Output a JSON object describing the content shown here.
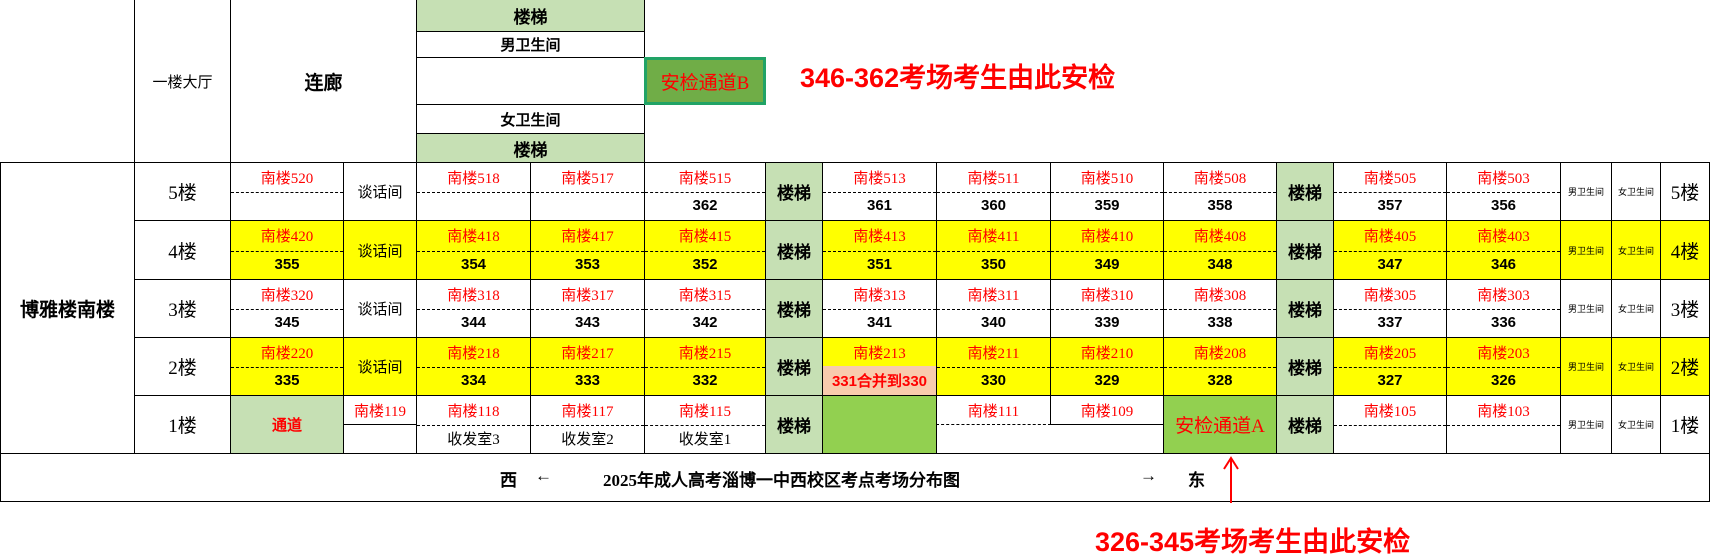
{
  "top": {
    "hall": "一楼大厅",
    "corridor": "连廊",
    "stairs_top": "楼梯",
    "male_wc": "男卫生间",
    "female_wc": "女卫生间",
    "stairs_bottom": "楼梯",
    "checkpoint_b": "安检通道B",
    "note_b": "346-362考场考生由此安检"
  },
  "building": "博雅楼南楼",
  "stairs": "楼梯",
  "talk_room": "谈话间",
  "male_wc_small": "男卫生间",
  "female_wc_small": "女卫生间",
  "floors": [
    {
      "label": "5楼",
      "left": {
        "name": "南楼520",
        "exam": ""
      },
      "rooms": [
        {
          "name": "南楼518",
          "exam": ""
        },
        {
          "name": "南楼517",
          "exam": ""
        },
        {
          "name": "南楼515",
          "exam": "362"
        },
        {
          "name": "南楼513",
          "exam": "361"
        },
        {
          "name": "南楼511",
          "exam": "360"
        },
        {
          "name": "南楼510",
          "exam": "359"
        },
        {
          "name": "南楼508",
          "exam": "358"
        },
        {
          "name": "南楼505",
          "exam": "357"
        },
        {
          "name": "南楼503",
          "exam": "356"
        }
      ]
    },
    {
      "label": "4楼",
      "left": {
        "name": "南楼420",
        "exam": "355"
      },
      "rooms": [
        {
          "name": "南楼418",
          "exam": "354"
        },
        {
          "name": "南楼417",
          "exam": "353"
        },
        {
          "name": "南楼415",
          "exam": "352"
        },
        {
          "name": "南楼413",
          "exam": "351"
        },
        {
          "name": "南楼411",
          "exam": "350"
        },
        {
          "name": "南楼410",
          "exam": "349"
        },
        {
          "name": "南楼408",
          "exam": "348"
        },
        {
          "name": "南楼405",
          "exam": "347"
        },
        {
          "name": "南楼403",
          "exam": "346"
        }
      ]
    },
    {
      "label": "3楼",
      "left": {
        "name": "南楼320",
        "exam": "345"
      },
      "rooms": [
        {
          "name": "南楼318",
          "exam": "344"
        },
        {
          "name": "南楼317",
          "exam": "343"
        },
        {
          "name": "南楼315",
          "exam": "342"
        },
        {
          "name": "南楼313",
          "exam": "341"
        },
        {
          "name": "南楼311",
          "exam": "340"
        },
        {
          "name": "南楼310",
          "exam": "339"
        },
        {
          "name": "南楼308",
          "exam": "338"
        },
        {
          "name": "南楼305",
          "exam": "337"
        },
        {
          "name": "南楼303",
          "exam": "336"
        }
      ]
    },
    {
      "label": "2楼",
      "left": {
        "name": "南楼220",
        "exam": "335"
      },
      "rooms": [
        {
          "name": "南楼218",
          "exam": "334"
        },
        {
          "name": "南楼217",
          "exam": "333"
        },
        {
          "name": "南楼215",
          "exam": "332"
        },
        {
          "name": "南楼213",
          "exam": "331合并到330"
        },
        {
          "name": "南楼211",
          "exam": "330"
        },
        {
          "name": "南楼210",
          "exam": "329"
        },
        {
          "name": "南楼208",
          "exam": "328"
        },
        {
          "name": "南楼205",
          "exam": "327"
        },
        {
          "name": "南楼203",
          "exam": "326"
        }
      ]
    }
  ],
  "first_floor": {
    "label": "1楼",
    "passage": "通道",
    "r119": "南楼119",
    "r118": "南楼118",
    "mail3": "收发室3",
    "r117": "南楼117",
    "mail2": "收发室2",
    "r115": "南楼115",
    "mail1": "收发室1",
    "r111": "南楼111",
    "r109": "南楼109",
    "checkpoint_a": "安检通道A",
    "r105": "南楼105",
    "r103": "南楼103"
  },
  "footer": {
    "west": "西",
    "left_arrow": "←",
    "title": "2025年成人高考淄博一中西校区考点考场分布图",
    "right_arrow": "→",
    "east": "东",
    "note_a": "326-345考场考生由此安检"
  },
  "colors": {
    "highlight": "#ffff00",
    "stairs": "#c6e0b4",
    "checkpoint": "#92d050",
    "merged": "#f8cbad",
    "room_text": "#ff0000"
  }
}
